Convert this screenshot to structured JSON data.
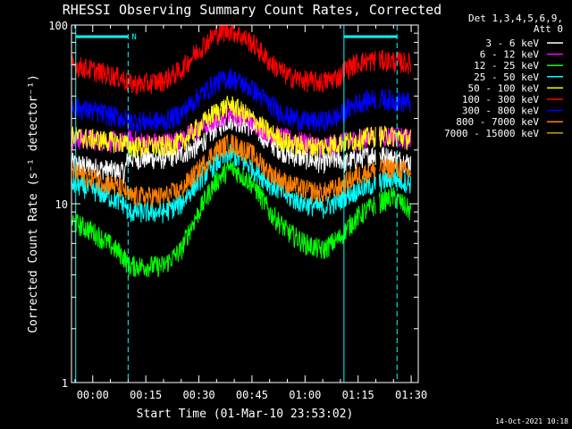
{
  "chart_data": {
    "type": "line",
    "title": "RHESSI Observing Summary Count Rates, Corrected",
    "xlabel": "Start Time (01-Mar-10 23:53:02)",
    "ylabel": "Corrected Count Rate (s⁻¹ detector⁻¹)",
    "yscale": "log",
    "ylim": [
      1,
      100
    ],
    "xlim_minutes": [
      -6,
      92
    ],
    "x_unit": "minutes from 00:00",
    "x_ticks": [
      {
        "label": "00:00",
        "minutes": 0
      },
      {
        "label": "00:15",
        "minutes": 15
      },
      {
        "label": "00:30",
        "minutes": 30
      },
      {
        "label": "00:45",
        "minutes": 45
      },
      {
        "label": "01:00",
        "minutes": 60
      },
      {
        "label": "01:15",
        "minutes": 75
      },
      {
        "label": "01:30",
        "minutes": 90
      }
    ],
    "y_ticks": [
      {
        "label": "1",
        "value": 1
      },
      {
        "label": "10",
        "value": 10
      },
      {
        "label": "100",
        "value": 100
      }
    ],
    "legend_header": [
      "Det 1,3,4,5,6,9,",
      "Att 0"
    ],
    "legend_position": "top-right",
    "series": [
      {
        "name": "3 - 6 keV",
        "color": "#ffffff",
        "x": [
          -6,
          0,
          9,
          10,
          15,
          20,
          25,
          30,
          35,
          39,
          45,
          50,
          55,
          60,
          65,
          70,
          71,
          75,
          80,
          85,
          90
        ],
        "y": [
          17,
          16,
          15,
          18,
          18,
          18,
          19,
          21,
          27,
          30,
          27,
          22,
          19,
          18,
          17,
          18,
          17,
          18,
          19,
          18,
          17
        ]
      },
      {
        "name": "6 - 12 keV",
        "color": "#ff00ff",
        "x": [
          -6,
          0,
          9,
          10,
          15,
          20,
          25,
          30,
          35,
          39,
          45,
          50,
          55,
          60,
          65,
          70,
          71,
          75,
          80,
          85,
          90
        ],
        "y": [
          23,
          23,
          22,
          23,
          22,
          22,
          23,
          26,
          30,
          33,
          29,
          25,
          23,
          22,
          21,
          22,
          22,
          23,
          24,
          24,
          23
        ]
      },
      {
        "name": "12 - 25 keV",
        "color": "#00ff00",
        "x": [
          -6,
          0,
          9,
          10,
          15,
          20,
          25,
          30,
          35,
          39,
          45,
          50,
          55,
          60,
          65,
          70,
          71,
          75,
          80,
          85,
          90
        ],
        "y": [
          8,
          7,
          5,
          4.5,
          4.5,
          4.5,
          5.5,
          9,
          13.5,
          16,
          13,
          9,
          7,
          6,
          5.5,
          6.5,
          7,
          8.5,
          10,
          11,
          9
        ]
      },
      {
        "name": "25 - 50 keV",
        "color": "#00ffff",
        "x": [
          -6,
          0,
          9,
          10,
          15,
          20,
          25,
          30,
          35,
          39,
          45,
          50,
          55,
          60,
          65,
          70,
          71,
          75,
          80,
          85,
          90
        ],
        "y": [
          13,
          12,
          10,
          9,
          9,
          9,
          10,
          13.5,
          17,
          19,
          16,
          13,
          11,
          10,
          9.5,
          10.5,
          11,
          12,
          13,
          14,
          13
        ]
      },
      {
        "name": "50 - 100 keV",
        "color": "#ffff00",
        "x": [
          -6,
          0,
          9,
          10,
          15,
          20,
          25,
          30,
          35,
          39,
          45,
          50,
          55,
          60,
          65,
          70,
          71,
          75,
          80,
          85,
          90
        ],
        "y": [
          24,
          23,
          22,
          21,
          21,
          21,
          22,
          27,
          33,
          36,
          30,
          25,
          22,
          21,
          21,
          22,
          22,
          23,
          24,
          24,
          23
        ]
      },
      {
        "name": "100 - 300 keV",
        "color": "#ff0000",
        "x": [
          -6,
          0,
          9,
          10,
          15,
          20,
          25,
          30,
          35,
          39,
          45,
          50,
          55,
          60,
          65,
          70,
          71,
          75,
          80,
          85,
          90
        ],
        "y": [
          60,
          56,
          50,
          47,
          47,
          49,
          56,
          73,
          90,
          94,
          80,
          62,
          52,
          49,
          48,
          52,
          56,
          62,
          64,
          63,
          61
        ]
      },
      {
        "name": "300 - 800 keV",
        "color": "#0000ff",
        "x": [
          -6,
          0,
          9,
          10,
          15,
          20,
          25,
          30,
          35,
          39,
          45,
          50,
          55,
          60,
          65,
          70,
          71,
          75,
          80,
          85,
          90
        ],
        "y": [
          35,
          33,
          30,
          29,
          29,
          29,
          32,
          40,
          48,
          51,
          44,
          36,
          31,
          29,
          29,
          31,
          33,
          37,
          39,
          38,
          37
        ]
      },
      {
        "name": "800 - 7000 keV",
        "color": "#ff8000",
        "x": [
          -6,
          0,
          9,
          10,
          15,
          20,
          25,
          30,
          35,
          39,
          45,
          50,
          55,
          60,
          65,
          70,
          71,
          75,
          80,
          85,
          90
        ],
        "y": [
          15,
          14,
          12,
          11,
          11,
          11,
          12,
          15.5,
          20,
          22,
          19,
          15,
          13,
          12,
          11.5,
          12.5,
          13,
          14.5,
          15.5,
          16,
          15
        ]
      },
      {
        "name": "7000 - 15000 keV",
        "color": "#c8a000",
        "x": [],
        "y": []
      }
    ],
    "annotations": {
      "night_marker": {
        "label": "N",
        "color": "#00ffff"
      },
      "vertical_lines_minutes": [
        {
          "minutes": -4.8,
          "style": "solid"
        },
        {
          "minutes": 10.0,
          "style": "dashed"
        },
        {
          "minutes": 71.0,
          "style": "solid"
        },
        {
          "minutes": 86.0,
          "style": "dashed"
        }
      ],
      "bars": [
        {
          "from_minutes": -4.8,
          "to_minutes": 10.0
        },
        {
          "from_minutes": 71.0,
          "to_minutes": 86.0
        }
      ]
    },
    "timestamp": "14-Oct-2021 10:18"
  }
}
